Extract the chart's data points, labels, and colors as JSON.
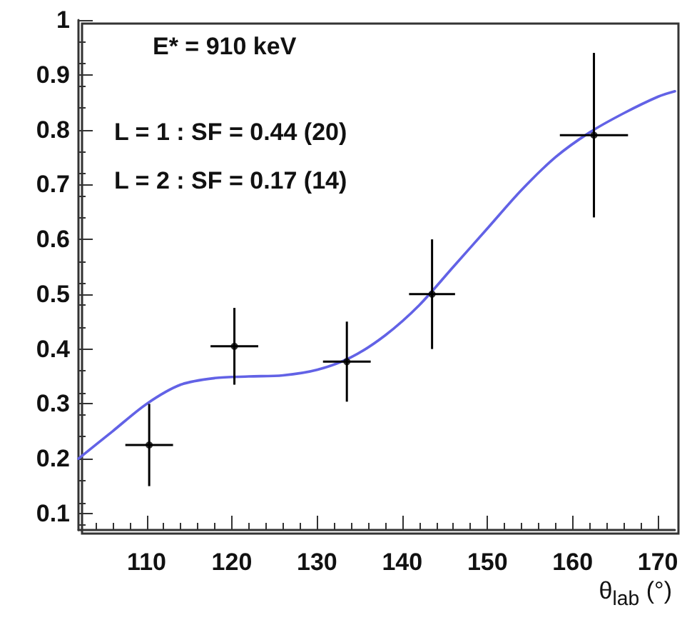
{
  "chart_data": {
    "type": "scatter",
    "xlabel": "θ$_{lab}$ (°)",
    "annotations": [
      "E* = 910 keV",
      "L = 1 : SF = 0.44 (20)",
      "L = 2 : SF = 0.17 (14)"
    ],
    "xlim": [
      102,
      172
    ],
    "ylim": [
      0.07,
      1
    ],
    "xticks": [
      110,
      120,
      130,
      140,
      150,
      160,
      170
    ],
    "yticks": [
      0.1,
      0.2,
      0.3,
      0.4,
      0.5,
      0.6,
      0.7,
      0.8,
      0.9,
      1
    ],
    "grid": false,
    "series": [
      {
        "color": "#000000",
        "marker": "circle",
        "x": [
          110.3,
          120.3,
          133.5,
          143.5,
          162.5
        ],
        "values": [
          0.225,
          0.405,
          0.377,
          0.5,
          0.79
        ],
        "errors": [
          0.075,
          0.07,
          0.073,
          0.1,
          0.15
        ],
        "xerrors": [
          2.8,
          2.8,
          2.8,
          2.7,
          4
        ]
      },
      {
        "type": "line",
        "color": "#6262e6",
        "marker": "none",
        "line_style": "solid",
        "x": [
          102,
          106,
          110,
          114,
          118,
          122,
          126,
          130,
          134,
          138,
          142,
          146,
          150,
          154,
          158,
          162,
          166,
          170,
          172
        ],
        "values": [
          0.2,
          0.25,
          0.3,
          0.335,
          0.347,
          0.35,
          0.352,
          0.362,
          0.385,
          0.425,
          0.48,
          0.55,
          0.62,
          0.69,
          0.75,
          0.795,
          0.83,
          0.86,
          0.87
        ]
      }
    ]
  }
}
